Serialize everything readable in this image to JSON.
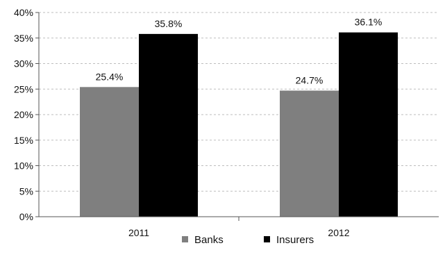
{
  "chart_data": {
    "type": "bar",
    "categories": [
      "2011",
      "2012"
    ],
    "series": [
      {
        "name": "Banks",
        "values": [
          25.4,
          24.7
        ],
        "labels": [
          "25.4%",
          "24.7%"
        ],
        "color": "#7f7f7f"
      },
      {
        "name": "Insurers",
        "values": [
          35.8,
          36.1
        ],
        "labels": [
          "35.8%",
          "36.1%"
        ],
        "color": "#000000"
      }
    ],
    "ylim": [
      0,
      40
    ],
    "yticks": [
      0,
      5,
      10,
      15,
      20,
      25,
      30,
      35,
      40
    ],
    "ytick_labels": [
      "0%",
      "5%",
      "10%",
      "15%",
      "20%",
      "25%",
      "30%",
      "35%",
      "40%"
    ],
    "grid": true,
    "legend_position": "bottom",
    "title": "",
    "xlabel": "",
    "ylabel": ""
  }
}
